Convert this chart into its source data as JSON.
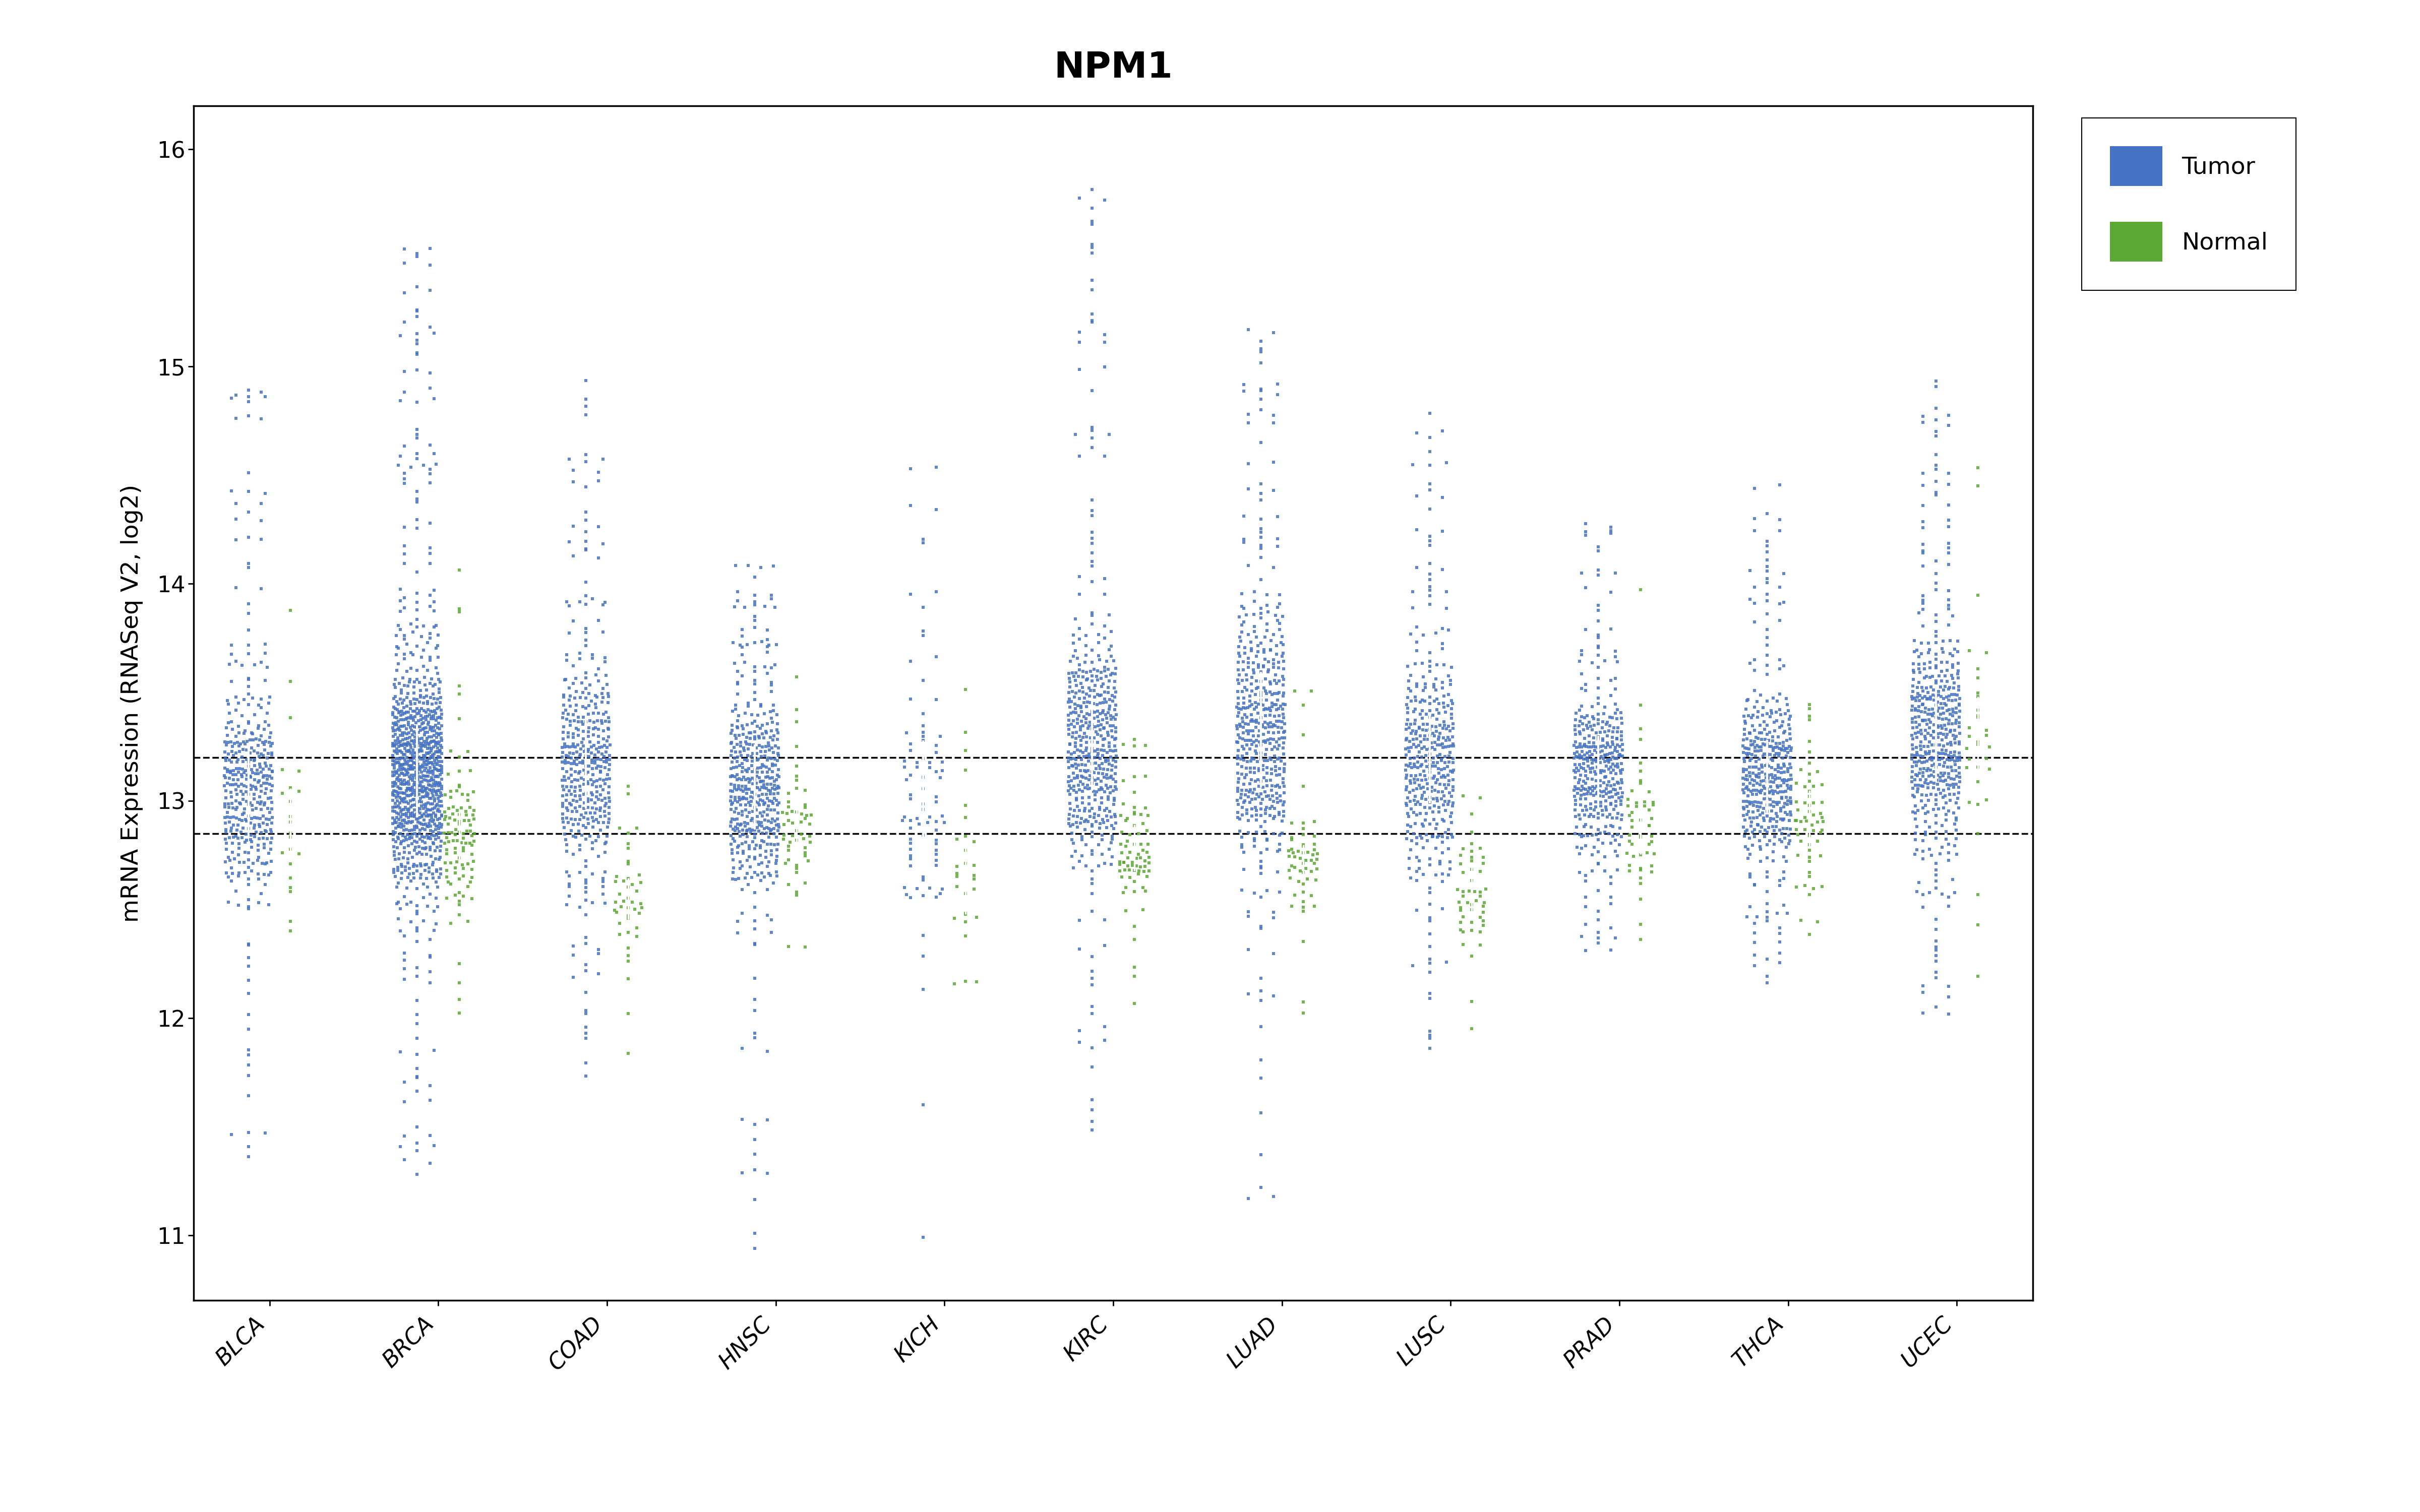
{
  "title": "NPM1",
  "ylabel": "mRNA Expression (RNASeq V2, log2)",
  "ylim": [
    10.7,
    16.2
  ],
  "yticks": [
    11,
    12,
    13,
    14,
    15,
    16
  ],
  "hline1": 13.2,
  "hline2": 12.85,
  "cancer_types": [
    "BLCA",
    "BRCA",
    "COAD",
    "HNSC",
    "KICH",
    "KIRC",
    "LUAD",
    "LUSC",
    "PRAD",
    "THCA",
    "UCEC"
  ],
  "tumor_color": "#4472C4",
  "normal_color": "#5BA832",
  "background_color": "#FFFFFF",
  "tumor_params": {
    "BLCA": {
      "mean": 13.05,
      "std": 0.52,
      "lo": 11.35,
      "hi": 14.9,
      "n": 400
    },
    "BRCA": {
      "mean": 13.12,
      "std": 0.52,
      "lo": 11.25,
      "hi": 15.55,
      "n": 1000
    },
    "COAD": {
      "mean": 13.15,
      "std": 0.54,
      "lo": 11.7,
      "hi": 14.95,
      "n": 420
    },
    "HNSC": {
      "mean": 13.05,
      "std": 0.48,
      "lo": 10.85,
      "hi": 14.1,
      "n": 480
    },
    "KICH": {
      "mean": 13.0,
      "std": 0.62,
      "lo": 10.65,
      "hi": 14.9,
      "n": 90
    },
    "KIRC": {
      "mean": 13.25,
      "std": 0.56,
      "lo": 11.45,
      "hi": 15.9,
      "n": 500
    },
    "LUAD": {
      "mean": 13.3,
      "std": 0.55,
      "lo": 11.15,
      "hi": 15.2,
      "n": 500
    },
    "LUSC": {
      "mean": 13.2,
      "std": 0.5,
      "lo": 11.85,
      "hi": 14.8,
      "n": 400
    },
    "PRAD": {
      "mean": 13.15,
      "std": 0.38,
      "lo": 12.25,
      "hi": 14.3,
      "n": 400
    },
    "THCA": {
      "mean": 13.1,
      "std": 0.43,
      "lo": 12.1,
      "hi": 14.5,
      "n": 430
    },
    "UCEC": {
      "mean": 13.3,
      "std": 0.53,
      "lo": 12.0,
      "hi": 14.95,
      "n": 500
    }
  },
  "normal_params": {
    "BLCA": {
      "mean": 12.85,
      "std": 0.3,
      "lo": 12.2,
      "hi": 14.0,
      "n": 20
    },
    "BRCA": {
      "mean": 12.8,
      "std": 0.36,
      "lo": 11.95,
      "hi": 14.1,
      "n": 110
    },
    "COAD": {
      "mean": 12.55,
      "std": 0.28,
      "lo": 11.75,
      "hi": 13.3,
      "n": 45
    },
    "HNSC": {
      "mean": 12.85,
      "std": 0.34,
      "lo": 12.1,
      "hi": 13.6,
      "n": 55
    },
    "KICH": {
      "mean": 12.65,
      "std": 0.36,
      "lo": 12.1,
      "hi": 13.6,
      "n": 28
    },
    "KIRC": {
      "mean": 12.75,
      "std": 0.28,
      "lo": 12.05,
      "hi": 13.3,
      "n": 75
    },
    "LUAD": {
      "mean": 12.7,
      "std": 0.32,
      "lo": 11.75,
      "hi": 13.6,
      "n": 58
    },
    "LUSC": {
      "mean": 12.55,
      "std": 0.27,
      "lo": 11.95,
      "hi": 13.1,
      "n": 52
    },
    "PRAD": {
      "mean": 12.85,
      "std": 0.32,
      "lo": 12.35,
      "hi": 14.0,
      "n": 52
    },
    "THCA": {
      "mean": 12.9,
      "std": 0.35,
      "lo": 12.25,
      "hi": 13.6,
      "n": 62
    },
    "UCEC": {
      "mean": 13.25,
      "std": 0.42,
      "lo": 12.15,
      "hi": 15.0,
      "n": 32
    }
  },
  "legend_tumor": "Tumor",
  "legend_normal": "Normal",
  "title_fontsize": 52,
  "label_fontsize": 34,
  "tick_fontsize": 32,
  "legend_fontsize": 34,
  "marker_size": 18,
  "alpha": 0.85
}
